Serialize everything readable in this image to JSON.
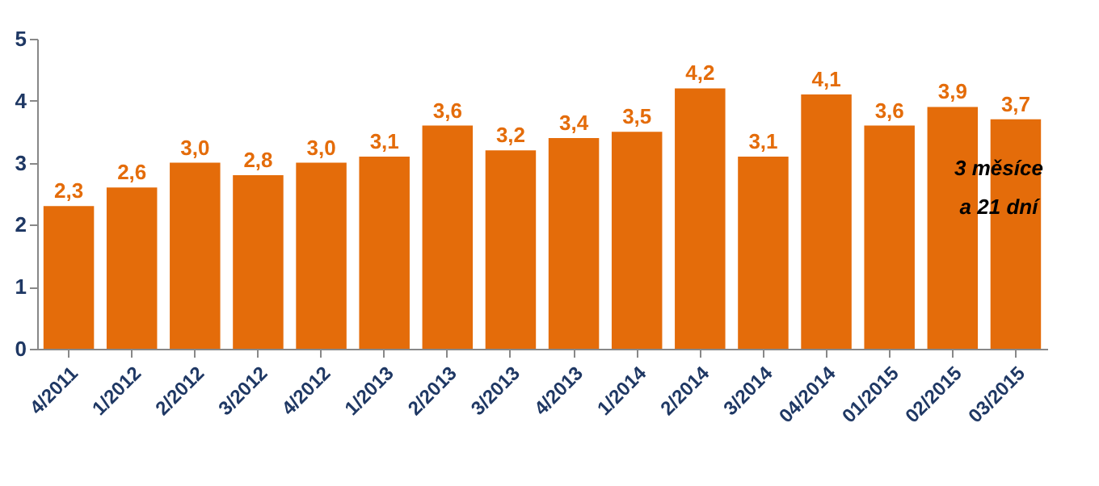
{
  "chart_data": {
    "type": "bar",
    "categories": [
      "4/2011",
      "1/2012",
      "2/2012",
      "3/2012",
      "4/2012",
      "1/2013",
      "2/2013",
      "3/2013",
      "4/2013",
      "1/2014",
      "2/2014",
      "3/2014",
      "04/2014",
      "01/2015",
      "02/2015",
      "03/2015"
    ],
    "values": [
      2.3,
      2.6,
      3.0,
      2.8,
      3.0,
      3.1,
      3.6,
      3.2,
      3.4,
      3.5,
      4.2,
      3.1,
      4.1,
      3.6,
      3.9,
      3.7
    ],
    "value_labels": [
      "2,3",
      "2,6",
      "3,0",
      "2,8",
      "3,0",
      "3,1",
      "3,6",
      "3,2",
      "3,4",
      "3,5",
      "4,2",
      "3,1",
      "4,1",
      "3,6",
      "3,9",
      "3,7"
    ],
    "color": "#e46c0a",
    "ylim": [
      0,
      5
    ],
    "yticks": [
      0,
      1,
      2,
      3,
      4,
      5
    ],
    "grid": false,
    "annotations": [
      "3 měsíce\na 21 dní"
    ]
  }
}
